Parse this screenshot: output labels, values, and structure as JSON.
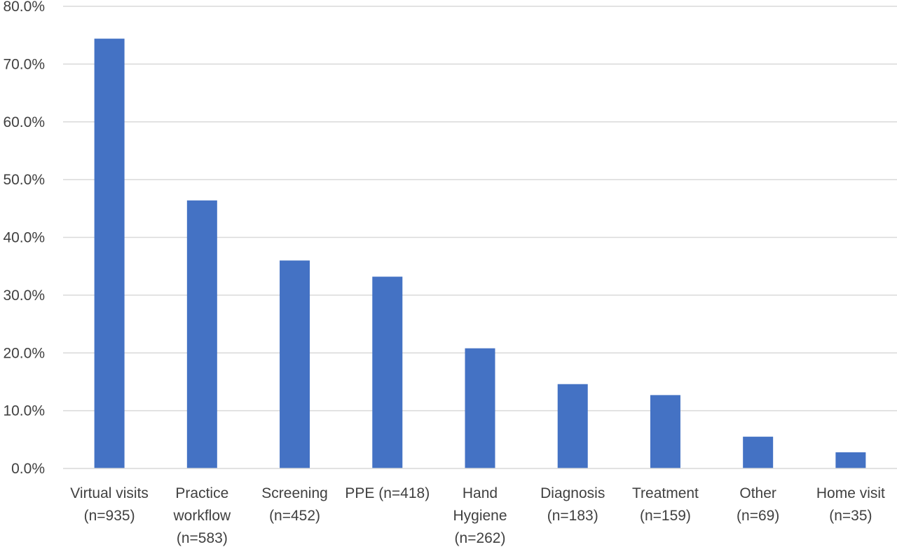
{
  "chart_data": {
    "type": "bar",
    "title": "",
    "xlabel": "",
    "ylabel": "",
    "categories": [
      [
        "Virtual visits",
        "(n=935)"
      ],
      [
        "Practice",
        "workflow",
        "(n=583)"
      ],
      [
        "Screening",
        "(n=452)"
      ],
      [
        "PPE (n=418)"
      ],
      [
        "Hand",
        "Hygiene",
        "(n=262)"
      ],
      [
        "Diagnosis",
        "(n=183)"
      ],
      [
        "Treatment",
        "(n=159)"
      ],
      [
        "Other",
        "(n=69)"
      ],
      [
        "Home visit",
        "(n=35)"
      ]
    ],
    "values": [
      74.4,
      46.4,
      36.0,
      33.2,
      20.8,
      14.6,
      12.7,
      5.5,
      2.8
    ],
    "ylim": [
      0,
      80
    ],
    "yticks": [
      "0.0%",
      "10.0%",
      "20.0%",
      "30.0%",
      "40.0%",
      "50.0%",
      "60.0%",
      "70.0%",
      "80.0%"
    ],
    "grid": true,
    "legend": "none",
    "bar_color": "#4472c4"
  }
}
